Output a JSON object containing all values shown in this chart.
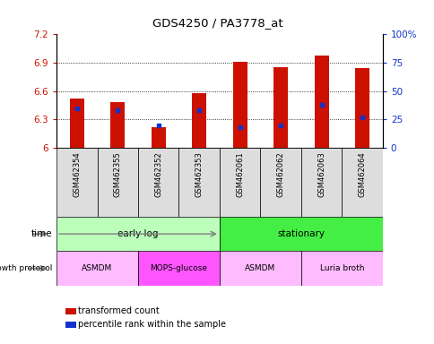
{
  "title": "GDS4250 / PA3778_at",
  "samples": [
    "GSM462354",
    "GSM462355",
    "GSM462352",
    "GSM462353",
    "GSM462061",
    "GSM462062",
    "GSM462063",
    "GSM462064"
  ],
  "bar_values": [
    6.52,
    6.48,
    6.22,
    6.58,
    6.91,
    6.85,
    6.98,
    6.84
  ],
  "bar_base": 6.0,
  "percentile_values": [
    35,
    33,
    20,
    33,
    18,
    20,
    38,
    27
  ],
  "ylim_left": [
    6.0,
    7.2
  ],
  "ylim_right": [
    0,
    100
  ],
  "yticks_left": [
    6.0,
    6.3,
    6.6,
    6.9,
    7.2
  ],
  "yticks_right": [
    0,
    25,
    50,
    75,
    100
  ],
  "ytick_labels_left": [
    "6",
    "6.3",
    "6.6",
    "6.9",
    "7.2"
  ],
  "ytick_labels_right": [
    "0",
    "25",
    "50",
    "75",
    "100%"
  ],
  "bar_color": "#cc1100",
  "blue_marker_color": "#1133cc",
  "time_row": {
    "label": "time",
    "groups": [
      {
        "name": "early log",
        "start": 0,
        "end": 4,
        "color": "#bbffbb"
      },
      {
        "name": "stationary",
        "start": 4,
        "end": 8,
        "color": "#44ee44"
      }
    ]
  },
  "protocol_row": {
    "label": "growth protocol",
    "groups": [
      {
        "name": "ASMDM",
        "start": 0,
        "end": 2,
        "color": "#ffbbff"
      },
      {
        "name": "MOPS-glucose",
        "start": 2,
        "end": 4,
        "color": "#ff55ff"
      },
      {
        "name": "ASMDM",
        "start": 4,
        "end": 6,
        "color": "#ffbbff"
      },
      {
        "name": "Luria broth",
        "start": 6,
        "end": 8,
        "color": "#ffbbff"
      }
    ]
  },
  "legend_items": [
    {
      "label": "transformed count",
      "color": "#cc1100"
    },
    {
      "label": "percentile rank within the sample",
      "color": "#1133cc"
    }
  ]
}
